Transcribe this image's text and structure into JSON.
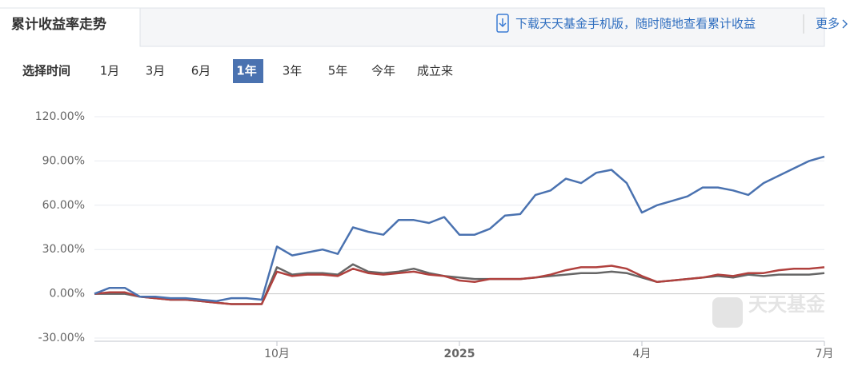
{
  "header": {
    "tab": "累计收益率走势",
    "banner": "下载天天基金手机版，随时随地查看累计收益",
    "more": "更多"
  },
  "filters": {
    "label": "选择时间",
    "options": [
      {
        "label": "1月",
        "active": false
      },
      {
        "label": "3月",
        "active": false
      },
      {
        "label": "6月",
        "active": false
      },
      {
        "label": "1年",
        "active": true
      },
      {
        "label": "3年",
        "active": false
      },
      {
        "label": "5年",
        "active": false
      },
      {
        "label": "今年",
        "active": false
      },
      {
        "label": "成立来",
        "active": false
      }
    ]
  },
  "watermark": "天天基金",
  "chart_data": {
    "type": "line",
    "categories": [
      null,
      null,
      null,
      null,
      null,
      null,
      null,
      null,
      null,
      null,
      null,
      null,
      "10月",
      null,
      null,
      null,
      null,
      null,
      null,
      null,
      null,
      null,
      null,
      null,
      "2025",
      null,
      null,
      null,
      null,
      null,
      null,
      null,
      null,
      null,
      null,
      null,
      "4月",
      null,
      null,
      null,
      null,
      null,
      null,
      null,
      null,
      null,
      null,
      null,
      "7月"
    ],
    "series": [
      {
        "color": "#4a72b0",
        "values": [
          0,
          4,
          4,
          -2,
          -2,
          -3,
          -3,
          -4,
          -5,
          -3,
          -3,
          -4,
          32,
          26,
          28,
          30,
          27,
          45,
          42,
          40,
          50,
          50,
          48,
          52,
          40,
          40,
          44,
          53,
          54,
          67,
          70,
          78,
          75,
          82,
          84,
          75,
          55,
          60,
          63,
          66,
          72,
          72,
          70,
          67,
          75,
          80,
          85,
          90,
          93
        ]
      },
      {
        "color": "#b0413e",
        "values": [
          0,
          1,
          1,
          -2,
          -3,
          -4,
          -4,
          -5,
          -6,
          -7,
          -7,
          -7,
          15,
          12,
          13,
          13,
          12,
          17,
          14,
          13,
          14,
          15,
          13,
          12,
          9,
          8,
          10,
          10,
          10,
          11,
          13,
          16,
          18,
          18,
          19,
          17,
          12,
          8,
          9,
          10,
          11,
          13,
          12,
          14,
          14,
          16,
          17,
          17,
          18
        ]
      },
      {
        "color": "#666666",
        "values": [
          0,
          0,
          0,
          -2,
          -3,
          -4,
          -4,
          -5,
          -6,
          -7,
          -7,
          -7,
          18,
          13,
          14,
          14,
          13,
          20,
          15,
          14,
          15,
          17,
          14,
          12,
          11,
          10,
          10,
          10,
          10,
          11,
          12,
          13,
          14,
          14,
          15,
          14,
          11,
          8,
          9,
          10,
          11,
          12,
          11,
          13,
          12,
          13,
          13,
          13,
          14
        ]
      }
    ],
    "ylim": [
      -30,
      120
    ],
    "yticks": [
      {
        "value": -30,
        "label": "-30.00%"
      },
      {
        "value": 0,
        "label": "0.00%"
      },
      {
        "value": 30,
        "label": "30.00%"
      },
      {
        "value": 60,
        "label": "60.00%"
      },
      {
        "value": 90,
        "label": "90.00%"
      },
      {
        "value": 120,
        "label": "120.00%"
      }
    ],
    "grid": true
  }
}
